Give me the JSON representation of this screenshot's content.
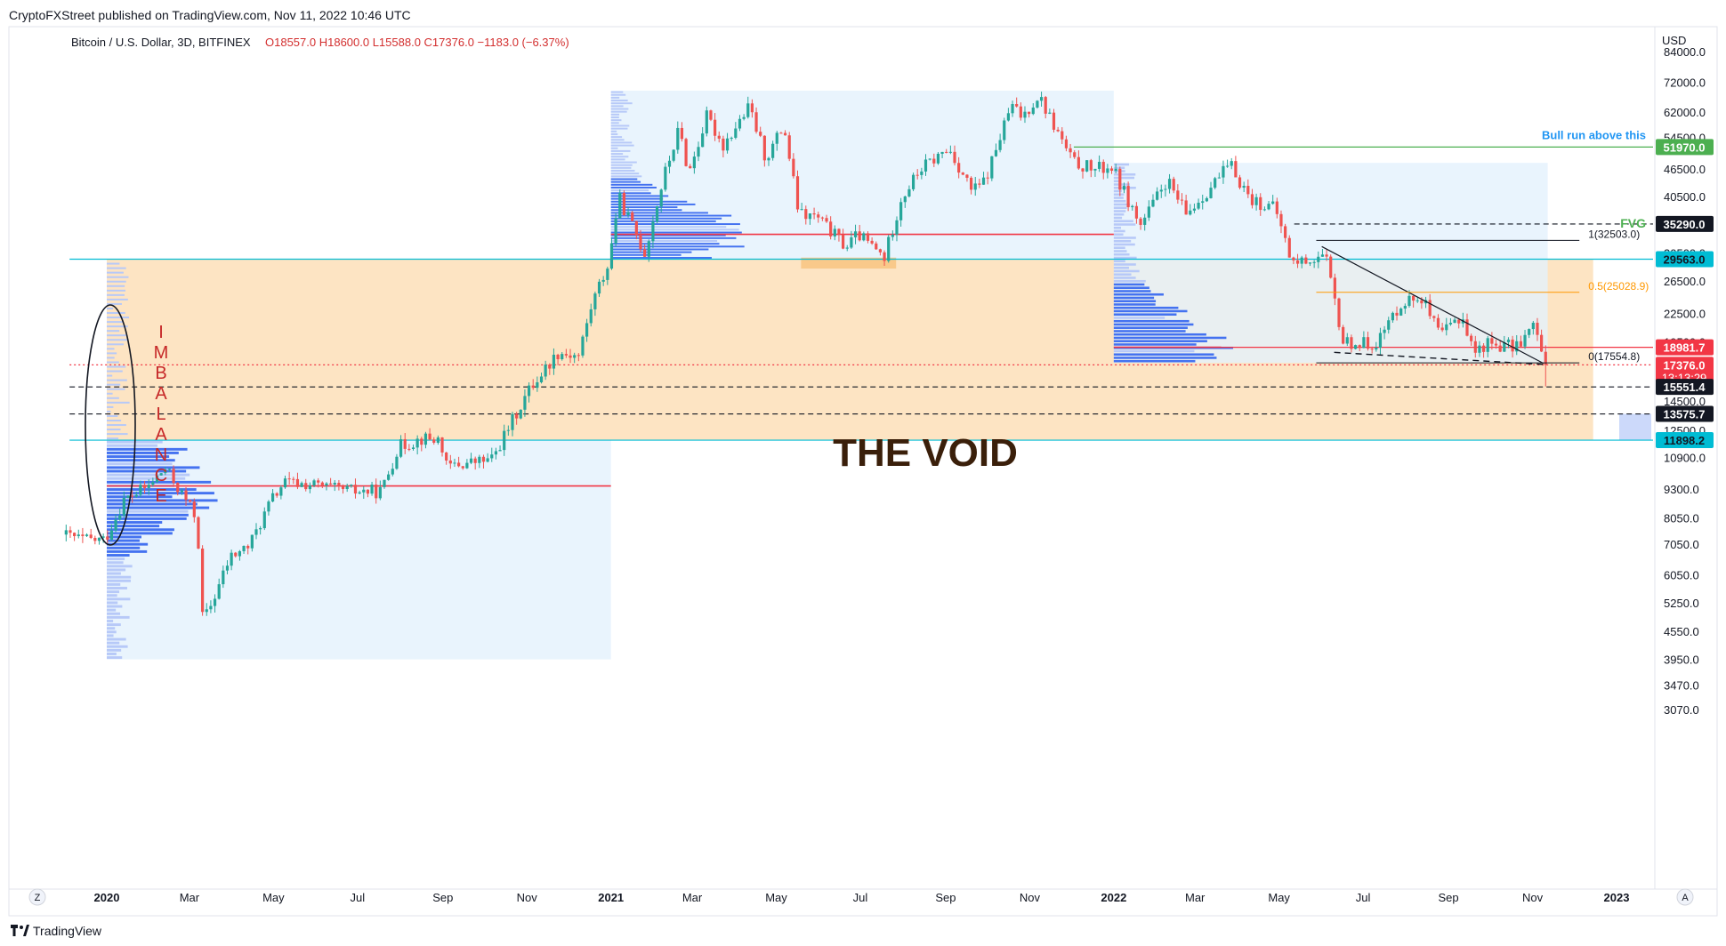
{
  "header": {
    "published": "CryptoFXStreet published on TradingView.com, Nov 11, 2022 10:46 UTC",
    "symbol": "Bitcoin / U.S. Dollar, 3D, BITFINEX",
    "ohlc": "O18557.0  H18600.0  L15588.0  C17376.0  −1183.0 (−6.37%)"
  },
  "footer": {
    "brand": "TradingView",
    "zoom_btn": "Z",
    "auto_btn": "A"
  },
  "colors": {
    "up": "#26a69a",
    "down": "#ef5350",
    "void": "#fde1bd",
    "profile": "#4472f0",
    "profile_light": "#b7c9f8",
    "profile_bg": "#e3f1fc",
    "poc": "#f23645",
    "bull": "#4caf50",
    "teal": "#00bcd4"
  },
  "chart_data": {
    "type": "candlestick",
    "timeframe": "3D",
    "yscale": "log",
    "currency_label": "USD",
    "y_ticks": [
      84000,
      72000,
      62000,
      54500,
      46500,
      40500,
      35000,
      30500,
      26500,
      22500,
      19500,
      17000,
      14500,
      12500,
      10900,
      9300,
      8050,
      7050,
      6050,
      5250,
      4550,
      3950,
      3470,
      3070
    ],
    "x_ticks": [
      {
        "label": "2020",
        "bold": true
      },
      {
        "label": "Mar"
      },
      {
        "label": "May"
      },
      {
        "label": "Jul"
      },
      {
        "label": "Sep"
      },
      {
        "label": "Nov"
      },
      {
        "label": "2021",
        "bold": true
      },
      {
        "label": "Mar"
      },
      {
        "label": "May"
      },
      {
        "label": "Jul"
      },
      {
        "label": "Sep"
      },
      {
        "label": "Nov"
      },
      {
        "label": "2022",
        "bold": true
      },
      {
        "label": "Mar"
      },
      {
        "label": "May"
      },
      {
        "label": "Jul"
      },
      {
        "label": "Sep"
      },
      {
        "label": "Nov"
      },
      {
        "label": "2023",
        "bold": true
      }
    ],
    "price_path": [
      [
        "2019-12-01",
        7400
      ],
      [
        "2019-12-18",
        7200
      ],
      [
        "2020-01-01",
        7200
      ],
      [
        "2020-01-15",
        8800
      ],
      [
        "2020-02-01",
        9400
      ],
      [
        "2020-02-14",
        10300
      ],
      [
        "2020-03-01",
        8700
      ],
      [
        "2020-03-08",
        8000
      ],
      [
        "2020-03-12",
        4900
      ],
      [
        "2020-03-16",
        5000
      ],
      [
        "2020-04-01",
        6600
      ],
      [
        "2020-04-15",
        7000
      ],
      [
        "2020-05-01",
        8800
      ],
      [
        "2020-05-10",
        9600
      ],
      [
        "2020-06-01",
        9500
      ],
      [
        "2020-06-15",
        9300
      ],
      [
        "2020-07-01",
        9200
      ],
      [
        "2020-07-20",
        9200
      ],
      [
        "2020-08-01",
        11500
      ],
      [
        "2020-08-18",
        12000
      ],
      [
        "2020-09-01",
        11900
      ],
      [
        "2020-09-05",
        10400
      ],
      [
        "2020-09-20",
        10600
      ],
      [
        "2020-10-08",
        10800
      ],
      [
        "2020-10-21",
        12800
      ],
      [
        "2020-11-05",
        15500
      ],
      [
        "2020-11-25",
        18500
      ],
      [
        "2020-12-10",
        18200
      ],
      [
        "2020-12-20",
        23800
      ],
      [
        "2021-01-01",
        29000
      ],
      [
        "2021-01-08",
        40500
      ],
      [
        "2021-01-15",
        36500
      ],
      [
        "2021-01-27",
        30500
      ],
      [
        "2021-02-10",
        44800
      ],
      [
        "2021-02-21",
        57000
      ],
      [
        "2021-02-28",
        45500
      ],
      [
        "2021-03-13",
        60500
      ],
      [
        "2021-03-25",
        52500
      ],
      [
        "2021-04-13",
        63500
      ],
      [
        "2021-04-25",
        49000
      ],
      [
        "2021-05-08",
        58000
      ],
      [
        "2021-05-19",
        37000
      ],
      [
        "2021-06-01",
        36500
      ],
      [
        "2021-06-22",
        31500
      ],
      [
        "2021-07-01",
        33500
      ],
      [
        "2021-07-20",
        29800
      ],
      [
        "2021-08-01",
        40000
      ],
      [
        "2021-08-15",
        46500
      ],
      [
        "2021-09-05",
        51500
      ],
      [
        "2021-09-22",
        41500
      ],
      [
        "2021-10-01",
        43800
      ],
      [
        "2021-10-20",
        64000
      ],
      [
        "2021-10-28",
        60500
      ],
      [
        "2021-11-09",
        67500
      ],
      [
        "2021-11-20",
        58000
      ],
      [
        "2021-12-04",
        48000
      ],
      [
        "2021-12-20",
        46500
      ],
      [
        "2022-01-01",
        47000
      ],
      [
        "2022-01-22",
        35000
      ],
      [
        "2022-02-10",
        44000
      ],
      [
        "2022-02-24",
        37000
      ],
      [
        "2022-03-28",
        47500
      ],
      [
        "2022-04-12",
        40000
      ],
      [
        "2022-04-30",
        38000
      ],
      [
        "2022-05-12",
        29000
      ],
      [
        "2022-06-05",
        30000
      ],
      [
        "2022-06-18",
        19500
      ],
      [
        "2022-07-01",
        19300
      ],
      [
        "2022-07-13",
        19500
      ],
      [
        "2022-07-30",
        23800
      ],
      [
        "2022-08-14",
        24500
      ],
      [
        "2022-08-27",
        20000
      ],
      [
        "2022-09-12",
        22400
      ],
      [
        "2022-09-21",
        18500
      ],
      [
        "2022-10-01",
        19400
      ],
      [
        "2022-10-20",
        19000
      ],
      [
        "2022-11-05",
        21300
      ],
      [
        "2022-11-08",
        18500
      ],
      [
        "2022-11-11",
        17376
      ]
    ],
    "zones": [
      {
        "name": "THE VOID",
        "from": "2020-01-01",
        "to": "2022-12-15",
        "low": 11898.2,
        "high": 29563.0
      },
      {
        "name": "range-2020",
        "from": "2020-01-01",
        "to": "2021-01-01",
        "low": 3950,
        "high": 11898.2
      },
      {
        "name": "range-2021",
        "from": "2021-01-01",
        "to": "2022-01-01",
        "low": 29563.0,
        "high": 69000
      },
      {
        "name": "range-2022",
        "from": "2022-01-01",
        "to": "2022-11-12",
        "low": 17554.8,
        "high": 48000
      },
      {
        "name": "support-2021",
        "from": "2021-05-19",
        "to": "2021-07-27",
        "low": 28200,
        "high": 29800
      }
    ],
    "levels": [
      {
        "price": 51970.0,
        "label": "51970.0",
        "color": "#4caf50",
        "from": "2021-12-03",
        "note": "Bull run above this"
      },
      {
        "price": 35290.0,
        "label": "35290.0",
        "color": "#131722",
        "dashed": true,
        "from": "2022-05-12",
        "note": "FVG"
      },
      {
        "price": 29563.0,
        "label": "29563.0",
        "color": "#00bcd4",
        "from": "2019-12-05"
      },
      {
        "price": 18981.7,
        "label": "18981.7",
        "color": "#f23645",
        "from": "2022-03-20"
      },
      {
        "price": 17376.0,
        "label": "17376.0",
        "color": "#f23645",
        "dotted": true,
        "from": "2019-12-05",
        "countdown": "13:13:29"
      },
      {
        "price": 15551.4,
        "label": "15551.4",
        "color": "#131722",
        "dashed": true,
        "from": "2019-12-05"
      },
      {
        "price": 13575.7,
        "label": "13575.7",
        "color": "#131722",
        "dashed": true,
        "from": "2019-12-05"
      },
      {
        "price": 11898.2,
        "label": "11898.2",
        "color": "#00bcd4",
        "from": "2019-12-05"
      }
    ],
    "poc_lines": [
      {
        "price": 9450,
        "from": "2020-01-01",
        "to": "2021-01-01"
      },
      {
        "price": 33500,
        "from": "2021-01-01",
        "to": "2022-01-01"
      },
      {
        "price": 18981.7,
        "from": "2022-01-01",
        "to": "2022-03-20"
      }
    ],
    "fib": [
      {
        "label": "1(32503.0)",
        "price": 32503.0
      },
      {
        "label": "0.5(25028.9)",
        "price": 25028.9
      },
      {
        "label": "0(17554.8)",
        "price": 17554.8
      }
    ],
    "trendline": {
      "from": [
        "2022-06-01",
        31500
      ],
      "to": [
        "2022-11-09",
        17500
      ]
    },
    "lower_trendline": {
      "from": [
        "2022-06-10",
        18500
      ],
      "to": [
        "2022-11-11",
        17400
      ]
    },
    "annotations": {
      "void_title": "THE VOID",
      "imbalance": [
        "I",
        "M",
        "B",
        "A",
        "L",
        "A",
        "N",
        "C",
        "E"
      ],
      "bull_run": "Bull run above this",
      "fvg": "FVG"
    }
  }
}
